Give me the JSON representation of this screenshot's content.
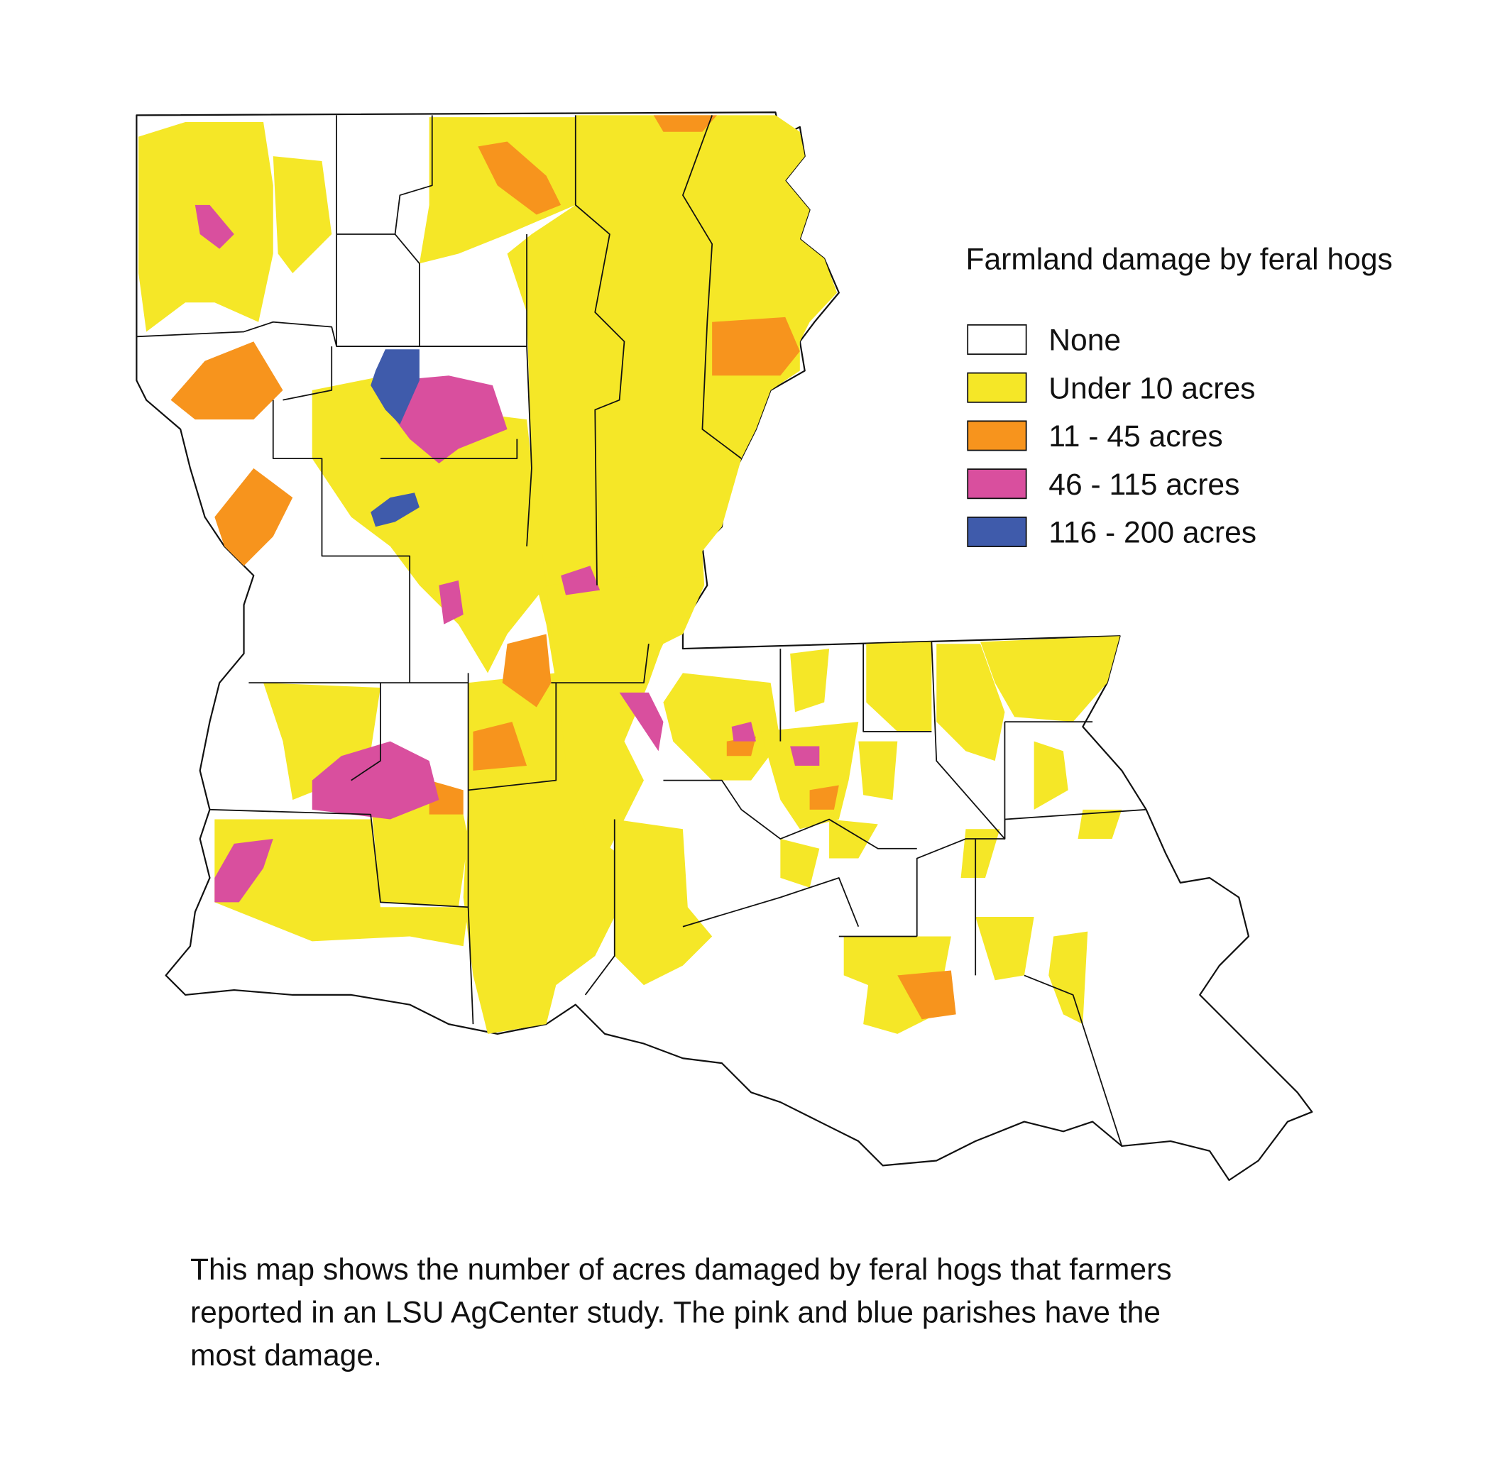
{
  "title": "Farmland damage by feral hogs",
  "legend": [
    {
      "label": "None",
      "color": "#ffffff"
    },
    {
      "label": "Under 10 acres",
      "color": "#f5e727"
    },
    {
      "label": "11 - 45 acres",
      "color": "#f7941d"
    },
    {
      "label": "46 - 115 acres",
      "color": "#d94f9e"
    },
    {
      "label": "116 - 200 acres",
      "color": "#3f5bab"
    }
  ],
  "caption": [
    "This map shows the number of acres damaged by feral hogs that farmers",
    "reported in an LSU AgCenter study. The pink and blue parishes have the",
    "most damage."
  ]
}
